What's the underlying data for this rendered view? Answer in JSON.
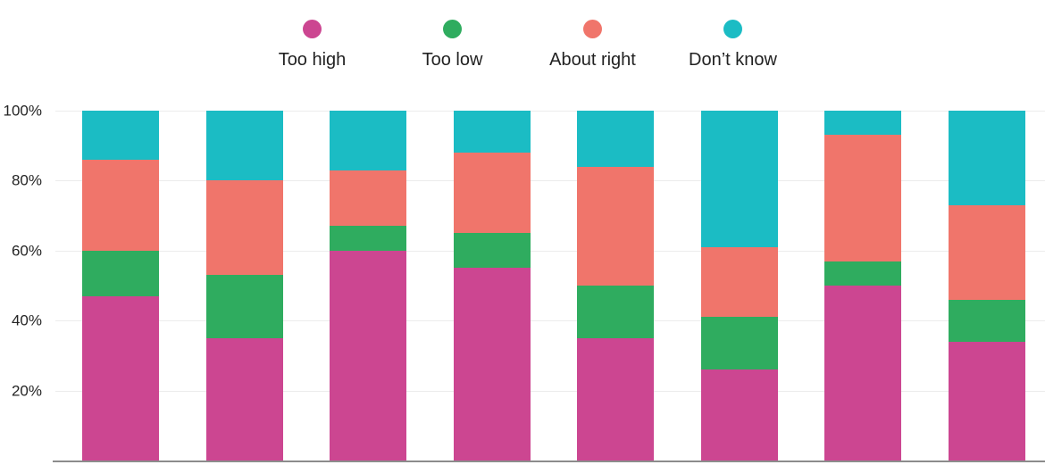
{
  "legend": {
    "items": [
      {
        "label": "Too high",
        "color": "#cc4691"
      },
      {
        "label": "Too low",
        "color": "#2fac5f"
      },
      {
        "label": "About right",
        "color": "#f0756b"
      },
      {
        "label": "Don’t know",
        "color": "#1bbcc4"
      }
    ]
  },
  "chart_data": {
    "type": "bar",
    "stacked": true,
    "orientation": "vertical",
    "title": "",
    "xlabel": "",
    "ylabel": "",
    "categories": [
      "",
      "",
      "",
      "",
      "",
      "",
      "",
      ""
    ],
    "series": [
      {
        "name": "Too high",
        "color": "#cc4691",
        "values": [
          47,
          35,
          60,
          55,
          35,
          26,
          50,
          34
        ]
      },
      {
        "name": "Too low",
        "color": "#2fac5f",
        "values": [
          13,
          18,
          7,
          10,
          15,
          15,
          7,
          12
        ]
      },
      {
        "name": "About right",
        "color": "#f0756b",
        "values": [
          26,
          27,
          16,
          23,
          34,
          20,
          36,
          27
        ]
      },
      {
        "name": "Don’t know",
        "color": "#1bbcc4",
        "values": [
          14,
          20,
          17,
          12,
          16,
          39,
          7,
          27
        ]
      }
    ],
    "ylim": [
      0,
      100
    ],
    "yticks": [
      {
        "value": 100,
        "label": "100%"
      },
      {
        "value": 80,
        "label": "80%"
      },
      {
        "value": 60,
        "label": "60%"
      },
      {
        "value": 40,
        "label": "40%"
      },
      {
        "value": 20,
        "label": "20%"
      }
    ],
    "grid": true,
    "legend_position": "top",
    "colors": {
      "gridline": "#ececec",
      "baseline": "#8c8c8c",
      "text": "#222222",
      "background": "#ffffff"
    }
  }
}
